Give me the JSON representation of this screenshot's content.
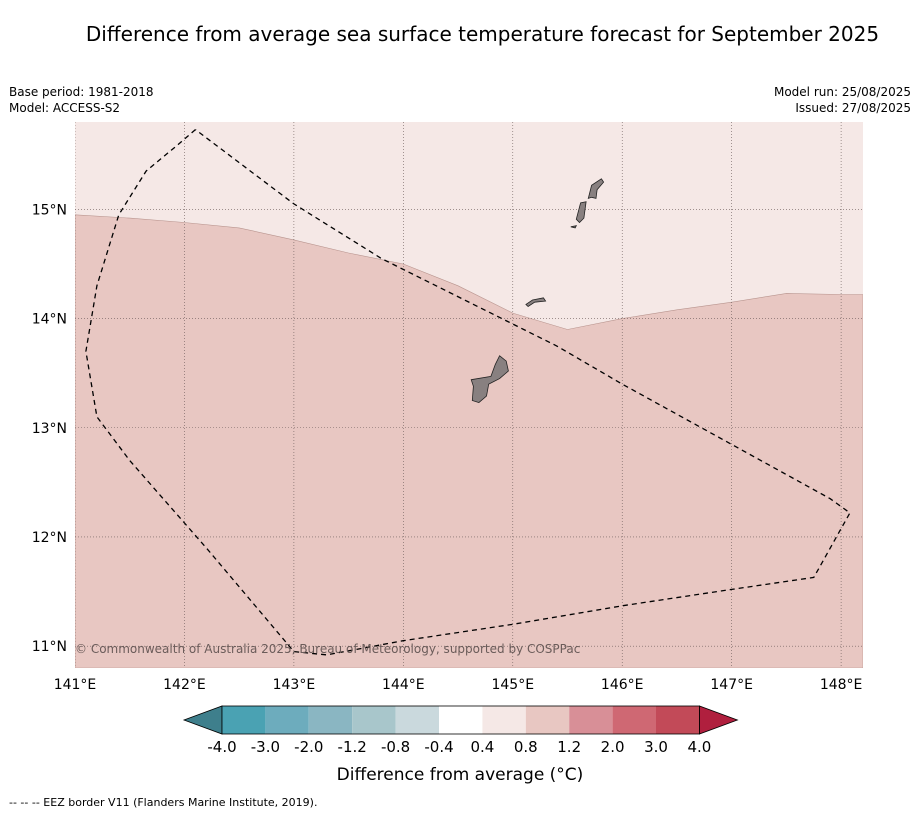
{
  "title": "Difference from average sea surface temperature forecast for September 2025",
  "header": {
    "base_period": "Base period: 1981-2018",
    "model": "Model: ACCESS-S2",
    "model_run": "Model run: 25/08/2025",
    "issued": "Issued: 27/08/2025"
  },
  "map": {
    "lon_range": [
      141.0,
      148.2
    ],
    "lat_range": [
      10.8,
      15.8
    ],
    "lon_ticks": [
      "141°E",
      "142°E",
      "143°E",
      "144°E",
      "145°E",
      "146°E",
      "147°E",
      "148°E"
    ],
    "lat_ticks": [
      "11°N",
      "12°N",
      "13°N",
      "14°N",
      "15°N"
    ],
    "attribution": "© Commonwealth of Australia 2025, Bureau of Meteorology, supported by COSPPac",
    "fill_colors": {
      "class_0_4_to_0_8": "#f5e8e6",
      "class_0_8_to_1_2": "#e8c7c2",
      "land": "#888080"
    },
    "zone_boundary_lon_lat": [
      [
        141.0,
        14.95
      ],
      [
        141.5,
        14.92
      ],
      [
        142.0,
        14.88
      ],
      [
        142.5,
        14.83
      ],
      [
        143.0,
        14.72
      ],
      [
        143.5,
        14.6
      ],
      [
        144.0,
        14.5
      ],
      [
        144.5,
        14.3
      ],
      [
        145.0,
        14.05
      ],
      [
        145.5,
        13.9
      ],
      [
        146.0,
        14.0
      ],
      [
        146.5,
        14.08
      ],
      [
        147.0,
        14.15
      ],
      [
        147.5,
        14.23
      ],
      [
        148.0,
        14.22
      ],
      [
        148.2,
        14.22
      ]
    ],
    "eez_lon_lat": [
      [
        142.1,
        15.73
      ],
      [
        141.95,
        15.6
      ],
      [
        141.65,
        15.35
      ],
      [
        141.4,
        14.95
      ],
      [
        141.2,
        14.3
      ],
      [
        141.1,
        13.7
      ],
      [
        141.2,
        13.1
      ],
      [
        141.5,
        12.7
      ],
      [
        142.2,
        11.9
      ],
      [
        143.0,
        10.95
      ],
      [
        143.3,
        10.92
      ],
      [
        144.0,
        11.05
      ],
      [
        145.0,
        11.2
      ],
      [
        146.0,
        11.37
      ],
      [
        147.0,
        11.52
      ],
      [
        147.75,
        11.63
      ],
      [
        148.08,
        12.22
      ],
      [
        147.9,
        12.35
      ],
      [
        146.0,
        13.4
      ],
      [
        145.4,
        13.75
      ],
      [
        144.8,
        14.05
      ],
      [
        143.8,
        14.55
      ],
      [
        143.0,
        15.05
      ],
      [
        142.1,
        15.73
      ]
    ],
    "islands": [
      {
        "name": "Guam",
        "outline": [
          [
            144.62,
            13.44
          ],
          [
            144.8,
            13.47
          ],
          [
            144.84,
            13.58
          ],
          [
            144.88,
            13.66
          ],
          [
            144.94,
            13.61
          ],
          [
            144.96,
            13.52
          ],
          [
            144.88,
            13.45
          ],
          [
            144.78,
            13.4
          ],
          [
            144.76,
            13.29
          ],
          [
            144.69,
            13.23
          ],
          [
            144.63,
            13.25
          ],
          [
            144.64,
            13.38
          ]
        ]
      },
      {
        "name": "Rota",
        "outline": [
          [
            145.12,
            14.13
          ],
          [
            145.18,
            14.17
          ],
          [
            145.28,
            14.19
          ],
          [
            145.3,
            14.16
          ],
          [
            145.2,
            14.15
          ],
          [
            145.14,
            14.11
          ]
        ]
      },
      {
        "name": "Tinian",
        "outline": [
          [
            145.58,
            14.91
          ],
          [
            145.62,
            15.06
          ],
          [
            145.67,
            15.07
          ],
          [
            145.65,
            14.92
          ],
          [
            145.61,
            14.88
          ]
        ]
      },
      {
        "name": "Saipan",
        "outline": [
          [
            145.69,
            15.1
          ],
          [
            145.72,
            15.22
          ],
          [
            145.81,
            15.28
          ],
          [
            145.83,
            15.25
          ],
          [
            145.77,
            15.18
          ],
          [
            145.76,
            15.1
          ],
          [
            145.72,
            15.11
          ]
        ]
      },
      {
        "name": "Aguijan",
        "outline": [
          [
            145.53,
            14.84
          ],
          [
            145.58,
            14.85
          ],
          [
            145.57,
            14.83
          ]
        ]
      }
    ]
  },
  "colorbar": {
    "colors": [
      "#3e7f8c",
      "#4aa2b3",
      "#6dacbd",
      "#8ab6c2",
      "#a8c6cb",
      "#cad9dd",
      "#ffffff",
      "#f5e8e6",
      "#e8c7c2",
      "#d88f97",
      "#cf6873",
      "#c24a58",
      "#b01f3e"
    ],
    "tick_labels": [
      "-4.0",
      "-3.0",
      "-2.0",
      "-1.2",
      "-0.8",
      "-0.4",
      "0.4",
      "0.8",
      "1.2",
      "2.0",
      "3.0",
      "4.0"
    ],
    "label": "Difference from average (°C)"
  },
  "footer": "--  --  -- EEZ border V11 (Flanders Marine Institute, 2019)."
}
